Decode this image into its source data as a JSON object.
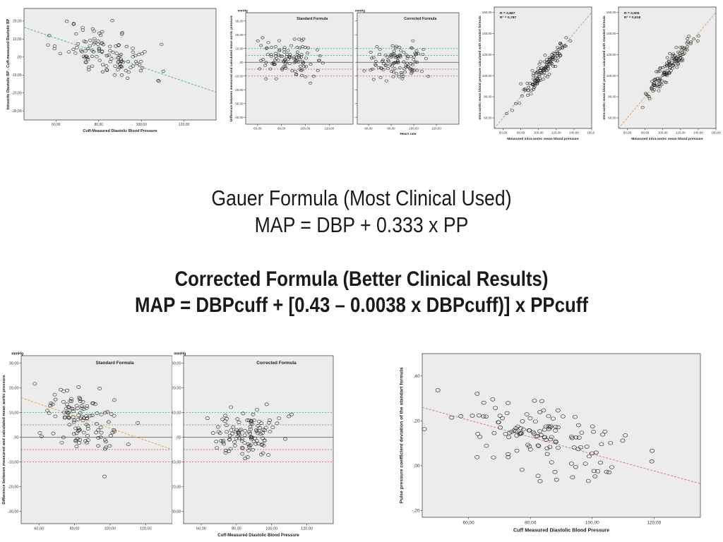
{
  "formulas": {
    "gauer_title": "Gauer Formula (Most Clinical Used)",
    "gauer_formula": "MAP = DBP + 0.333 x PP",
    "corrected_title": "Corrected Formula (Better Clinical Results)",
    "corrected_formula": "MAP = DBPcuff + [0.43 – 0.0038 x DBPcuff)] x PPcuff"
  },
  "chart_data": [
    {
      "id": "c1",
      "type": "scatter",
      "title": "",
      "xlabel": "Cuff-Measured Diastolic Blood Pressure",
      "ylabel": "Intraortic Diastolic BP - Cuff-measured Diastolic BP",
      "xlim": [
        45,
        135
      ],
      "ylim": [
        -35,
        27
      ],
      "xticks": [
        60,
        80,
        100,
        120
      ],
      "xtick_labels": [
        "60,00",
        "80,00",
        "100,00",
        "120,00"
      ],
      "yticks": [
        20,
        10,
        0,
        -10,
        -20,
        -30
      ],
      "ytick_labels": [
        "20,00",
        "10,00",
        ",00",
        "-10,00",
        "-20,00",
        "-30,00"
      ],
      "fit_line": [
        [
          45,
          16.5
        ],
        [
          135,
          -19.5
        ]
      ],
      "fit_color": "#4aa8b8",
      "grid": false,
      "point_seed": 11,
      "point_count": 120,
      "point_center": [
        84,
        2
      ],
      "point_spread": [
        11,
        7
      ],
      "point_slope": -0.35
    },
    {
      "id": "c2",
      "type": "scatter",
      "title": "Standard Formula",
      "unit": "mmHg",
      "xlabel": "",
      "ylabel": "Difference between measured and calculated mean aortic pressure",
      "xlim": [
        50,
        140
      ],
      "ylim": [
        -45,
        36
      ],
      "xticks": [
        60,
        80,
        100,
        120
      ],
      "xtick_labels": [
        "60,00",
        "80,00",
        "100,00",
        "120,00"
      ],
      "yticks": [
        30,
        20,
        10,
        0,
        -10,
        -20,
        -30,
        -40
      ],
      "ytick_labels": [
        "30,00",
        "20,00",
        "10,00",
        ",00",
        "-10,00",
        "-20,00",
        "-30,00",
        "-40,00"
      ],
      "hlines": [
        {
          "y": 0,
          "color": "#555555",
          "dash": false
        },
        {
          "y": 10,
          "color": "#4a9a6a",
          "dash": true
        },
        {
          "y": 5,
          "color": "#4a9a6a",
          "dash": true
        },
        {
          "y": -5,
          "color": "#cc5555",
          "dash": true
        },
        {
          "y": -10,
          "color": "#cc5555",
          "dash": true
        }
      ],
      "grid": false,
      "point_seed": 22,
      "point_count": 110,
      "point_center": [
        85,
        3
      ],
      "point_spread": [
        12,
        6
      ],
      "point_slope": -0.1
    },
    {
      "id": "c3",
      "type": "scatter",
      "title": "Corrected Formula",
      "unit": "mmHg",
      "xlabel": "Heart rate",
      "ylabel": "",
      "xlim": [
        50,
        140
      ],
      "ylim": [
        -45,
        36
      ],
      "xticks": [
        60,
        80,
        100,
        120
      ],
      "xtick_labels": [
        "60,00",
        "80,00",
        "100,00",
        "120,00"
      ],
      "yticks": [
        30,
        20,
        10,
        0,
        -10,
        -20,
        -30,
        -40
      ],
      "ytick_labels": [
        "30,00",
        "20,00",
        "10,00",
        ",00",
        "-10,00",
        "-20,00",
        "-30,00",
        "-40,00"
      ],
      "hlines": [
        {
          "y": 0,
          "color": "#555555",
          "dash": false
        },
        {
          "y": 10,
          "color": "#4a9a6a",
          "dash": true
        },
        {
          "y": 5,
          "color": "#4a9a6a",
          "dash": true
        },
        {
          "y": -5,
          "color": "#cc5555",
          "dash": true
        },
        {
          "y": -10,
          "color": "#cc5555",
          "dash": true
        }
      ],
      "grid": false,
      "point_seed": 33,
      "point_count": 110,
      "point_center": [
        85,
        0
      ],
      "point_spread": [
        12,
        6
      ],
      "point_slope": 0
    },
    {
      "id": "c4",
      "type": "scatter",
      "title": "",
      "annotation": [
        "R = 0,887",
        "R² = 0,787"
      ],
      "xlabel": "Measured intra-aortic mean blood pressure",
      "ylabel": "Intra-aortic mean blood pressure calculated with standart formula",
      "xlim": [
        50,
        160
      ],
      "ylim": [
        50,
        165
      ],
      "xticks": [
        60,
        80,
        100,
        120,
        140,
        160
      ],
      "xtick_labels": [
        "60,00",
        "80,00",
        "100,00",
        "120,00",
        "140,00",
        "160,00"
      ],
      "yticks": [
        60,
        80,
        100,
        120,
        140,
        160
      ],
      "ytick_labels": [
        "60,00",
        "80,00",
        "100,00",
        "120,00",
        "140,00",
        "160,00"
      ],
      "fit_line": [
        [
          50,
          50
        ],
        [
          160,
          160
        ]
      ],
      "fit_color": "#88aa88",
      "grid": false,
      "point_seed": 44,
      "point_count": 130,
      "point_center": [
        106,
        106
      ],
      "point_spread": [
        14,
        5
      ],
      "point_slope": 1
    },
    {
      "id": "c5",
      "type": "scatter",
      "title": "",
      "annotation": [
        "R = 0,905",
        "R² = 0,818"
      ],
      "xlabel": "Measured intra-aortic mean blood pressure",
      "ylabel": "Intra-aortic mean blood pressure calculated with standart formula",
      "xlim": [
        50,
        160
      ],
      "ylim": [
        50,
        165
      ],
      "xticks": [
        60,
        80,
        100,
        120,
        140,
        160
      ],
      "xtick_labels": [
        "60,00",
        "80,00",
        "100,00",
        "120,00",
        "140,00",
        "160,00"
      ],
      "yticks": [
        60,
        80,
        100,
        120,
        140,
        160
      ],
      "ytick_labels": [
        "60,00",
        "80,00",
        "100,00",
        "120,00",
        "140,00",
        "160,00"
      ],
      "fit_line": [
        [
          50,
          50
        ],
        [
          160,
          160
        ]
      ],
      "fit_color": "#e0a050",
      "grid": false,
      "point_seed": 55,
      "point_count": 130,
      "point_center": [
        106,
        106
      ],
      "point_spread": [
        14,
        5
      ],
      "point_slope": 1
    },
    {
      "id": "c6",
      "type": "scatter",
      "title": "Standard Formula",
      "unit": "mmHg",
      "xlabel": "",
      "ylabel": "Difference between measured and calculated mean aortic pressure",
      "xlim": [
        50,
        135
      ],
      "ylim": [
        -35,
        33
      ],
      "xticks": [
        60,
        80,
        100,
        120
      ],
      "xtick_labels": [
        "60,00",
        "80,00",
        "100,00",
        "120,00"
      ],
      "yticks": [
        30,
        20,
        10,
        0,
        -10,
        -20,
        -30
      ],
      "ytick_labels": [
        "30,00",
        "20,00",
        "10,00",
        ",00",
        "-10,00",
        "-20,00",
        "-30,00"
      ],
      "hlines": [
        {
          "y": 0,
          "color": "#555555",
          "dash": false
        },
        {
          "y": 10,
          "color": "#4a9a6a",
          "dash": true
        },
        {
          "y": 5,
          "color": "#4a9a6a",
          "dash": true
        },
        {
          "y": -5,
          "color": "#cc5555",
          "dash": true
        },
        {
          "y": -10,
          "color": "#cc5555",
          "dash": true
        }
      ],
      "fit_line": [
        [
          50,
          16
        ],
        [
          135,
          -5
        ]
      ],
      "fit_color": "#e0a050",
      "grid": false,
      "point_seed": 66,
      "point_count": 120,
      "point_center": [
        84,
        6
      ],
      "point_spread": [
        11,
        6
      ],
      "point_slope": -0.2
    },
    {
      "id": "c7",
      "type": "scatter",
      "title": "Corrected Formula",
      "unit": "mmHg",
      "xlabel": "Cuff-Measured Diastolic Blood Pressure",
      "ylabel": "",
      "xlim": [
        50,
        135
      ],
      "ylim": [
        -35,
        33
      ],
      "xticks": [
        60,
        80,
        100,
        120
      ],
      "xtick_labels": [
        "60,00",
        "80,00",
        "100,00",
        "120,00"
      ],
      "yticks": [
        30,
        20,
        10,
        0,
        -10,
        -20,
        -30
      ],
      "ytick_labels": [
        "30,00",
        "20,00",
        "10,00",
        ",00",
        "-10,00",
        "-20,00",
        "-30,00"
      ],
      "hlines": [
        {
          "y": 0,
          "color": "#555555",
          "dash": false
        },
        {
          "y": 10,
          "color": "#4a9a6a",
          "dash": true
        },
        {
          "y": 5,
          "color": "#4a9a6a",
          "dash": true
        },
        {
          "y": -5,
          "color": "#cc5555",
          "dash": true
        },
        {
          "y": -10,
          "color": "#cc5555",
          "dash": true
        }
      ],
      "grid": false,
      "point_seed": 77,
      "point_count": 115,
      "point_center": [
        85,
        1
      ],
      "point_spread": [
        11,
        5
      ],
      "point_slope": 0
    },
    {
      "id": "c8",
      "type": "scatter",
      "title": "",
      "xlabel": "Cuff Measured Diastolic Blood Pressure",
      "ylabel": "Pulse pressure coefficient deviation of the standart formula",
      "xlim": [
        45,
        135
      ],
      "ylim": [
        -0.23,
        0.5
      ],
      "xticks": [
        60,
        80,
        100,
        120
      ],
      "xtick_labels": [
        "60,00",
        "80,00",
        "100,00",
        "120,00"
      ],
      "yticks": [
        0.4,
        0.2,
        0,
        -0.2
      ],
      "ytick_labels": [
        ",40",
        ",20",
        ",00",
        "-,20"
      ],
      "fit_line": [
        [
          45,
          0.26
        ],
        [
          135,
          -0.08
        ]
      ],
      "fit_color": "#d07090",
      "grid": false,
      "point_seed": 88,
      "point_count": 130,
      "point_center": [
        85,
        0.12
      ],
      "point_spread": [
        12,
        0.08
      ],
      "point_slope": -0.004
    }
  ]
}
